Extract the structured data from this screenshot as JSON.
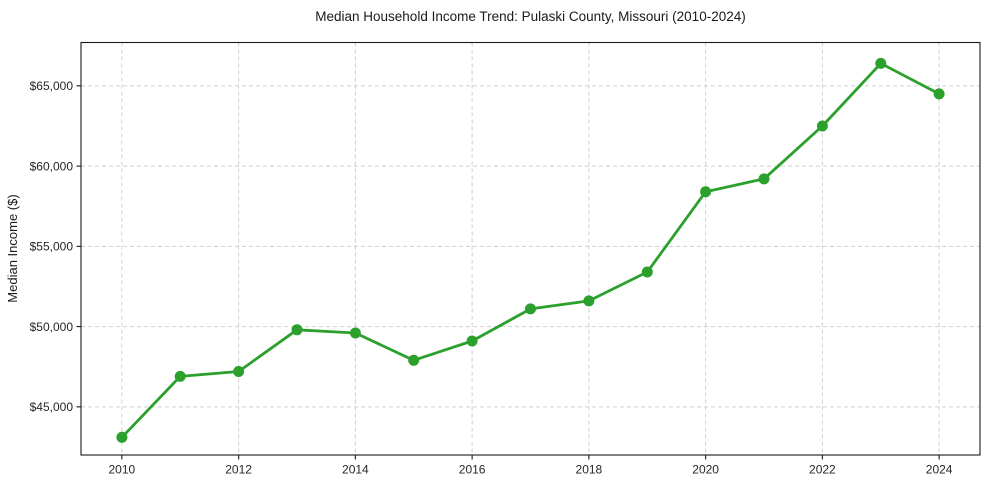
{
  "chart_data": {
    "type": "line",
    "title": "Median Household Income Trend: Pulaski County, Missouri (2010-2024)",
    "xlabel": "",
    "ylabel": "Median Income ($)",
    "x": [
      2010,
      2011,
      2012,
      2013,
      2014,
      2015,
      2016,
      2017,
      2018,
      2019,
      2020,
      2021,
      2022,
      2023,
      2024
    ],
    "series": [
      {
        "name": "Median Household Income",
        "values": [
          43100,
          46900,
          47200,
          49800,
          49600,
          47900,
          49100,
          51100,
          51600,
          53400,
          58400,
          59200,
          62500,
          66400,
          64500
        ]
      }
    ],
    "xlim": [
      2009.3,
      2024.7
    ],
    "ylim": [
      42000,
      67700
    ],
    "x_ticks": [
      2010,
      2012,
      2014,
      2016,
      2018,
      2020,
      2022,
      2024
    ],
    "x_tick_labels": [
      "2010",
      "2012",
      "2014",
      "2016",
      "2018",
      "2020",
      "2022",
      "2024"
    ],
    "y_ticks": [
      45000,
      50000,
      55000,
      60000,
      65000
    ],
    "y_tick_labels": [
      "$45,000",
      "$50,000",
      "$55,000",
      "$60,000",
      "$65,000"
    ],
    "grid": true,
    "legend": "none",
    "line_color": "#2ca02c",
    "marker_color": "#2ca02c",
    "grid_color": "#cfcfcf",
    "border_color": "#1a1a1a",
    "background_color": "#ffffff",
    "marker_style": "circle",
    "line_width": 2.8,
    "marker_radius": 5.5
  }
}
